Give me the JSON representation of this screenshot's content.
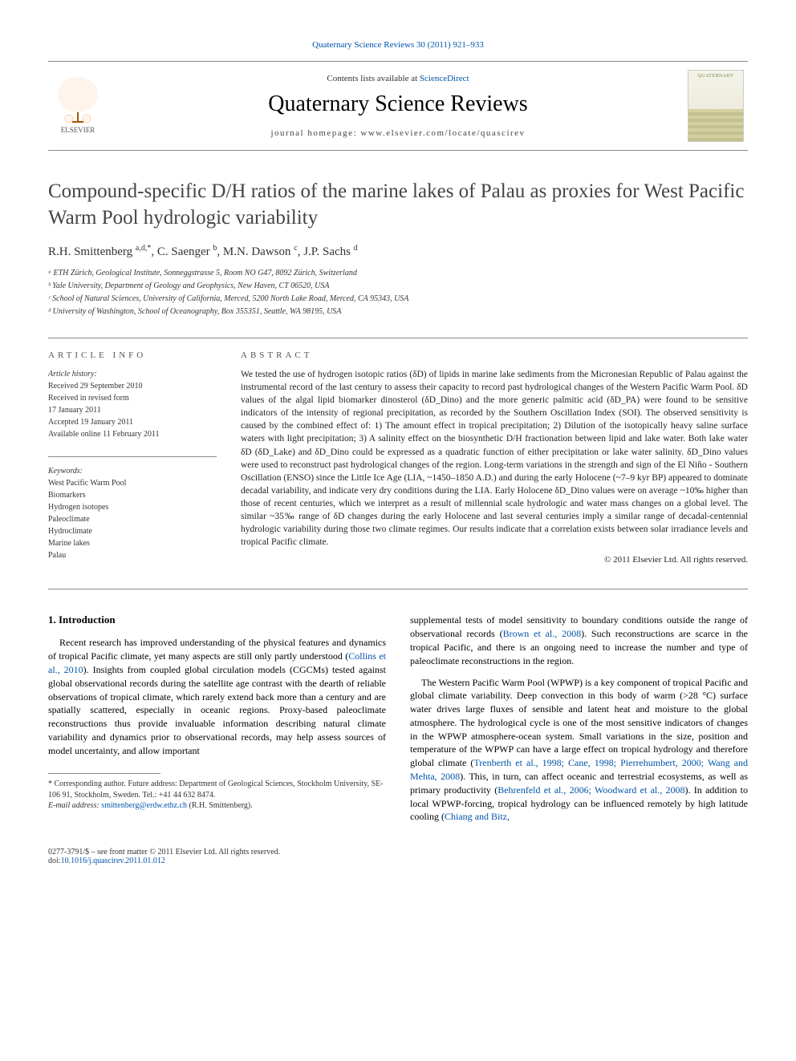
{
  "journal_ref": {
    "text": "Quaternary Science Reviews 30 (2011) 921–933",
    "link_text": "Quaternary Science Reviews 30 (2011) 921–933"
  },
  "masthead": {
    "contents_prefix": "Contents lists available at ",
    "contents_link": "ScienceDirect",
    "journal_name": "Quaternary Science Reviews",
    "homepage_prefix": "journal homepage: ",
    "homepage_url": "www.elsevier.com/locate/quascirev",
    "cover_label": "QUATERNARY"
  },
  "title": "Compound-specific D/H ratios of the marine lakes of Palau as proxies for West Pacific Warm Pool hydrologic variability",
  "authors_html": "R.H. Smittenberg <sup>a,d,*</sup>, C. Saenger <sup>b</sup>, M.N. Dawson <sup>c</sup>, J.P. Sachs <sup>d</sup>",
  "affiliations": [
    "ᵃ ETH Zürich, Geological Institute, Sonneggstrasse 5, Room NO G47, 8092 Zürich, Switzerland",
    "ᵇ Yale University, Department of Geology and Geophysics, New Haven, CT 06520, USA",
    "ᶜ School of Natural Sciences, University of California, Merced, 5200 North Lake Road, Merced, CA 95343, USA",
    "ᵈ University of Washington, School of Oceanography, Box 355351, Seattle, WA 98195, USA"
  ],
  "article_info": {
    "header": "ARTICLE INFO",
    "history_label": "Article history:",
    "history_lines": [
      "Received 29 September 2010",
      "Received in revised form",
      "17 January 2011",
      "Accepted 19 January 2011",
      "Available online 11 February 2011"
    ],
    "keywords_label": "Keywords:",
    "keywords": [
      "West Pacific Warm Pool",
      "Biomarkers",
      "Hydrogen isotopes",
      "Paleoclimate",
      "Hydroclimate",
      "Marine lakes",
      "Palau"
    ]
  },
  "abstract": {
    "header": "ABSTRACT",
    "text": "We tested the use of hydrogen isotopic ratios (δD) of lipids in marine lake sediments from the Micronesian Republic of Palau against the instrumental record of the last century to assess their capacity to record past hydrological changes of the Western Pacific Warm Pool. δD values of the algal lipid biomarker dinosterol (δD_Dino) and the more generic palmitic acid (δD_PA) were found to be sensitive indicators of the intensity of regional precipitation, as recorded by the Southern Oscillation Index (SOI). The observed sensitivity is caused by the combined effect of: 1) The amount effect in tropical precipitation; 2) Dilution of the isotopically heavy saline surface waters with light precipitation; 3) A salinity effect on the biosynthetic D/H fractionation between lipid and lake water. Both lake water δD (δD_Lake) and δD_Dino could be expressed as a quadratic function of either precipitation or lake water salinity. δD_Dino values were used to reconstruct past hydrological changes of the region. Long-term variations in the strength and sign of the El Niño - Southern Oscillation (ENSO) since the Little Ice Age (LIA, ~1450–1850 A.D.) and during the early Holocene (~7–9 kyr BP) appeared to dominate decadal variability, and indicate very dry conditions during the LIA. Early Holocene δD_Dino values were on average ~10‰ higher than those of recent centuries, which we interpret as a result of millennial scale hydrologic and water mass changes on a global level. The similar ~35‰ range of δD changes during the early Holocene and last several centuries imply a similar range of decadal-centennial hydrologic variability during those two climate regimes. Our results indicate that a correlation exists between solar irradiance levels and tropical Pacific climate.",
    "copyright": "© 2011 Elsevier Ltd. All rights reserved."
  },
  "body": {
    "section_number": "1.",
    "section_title": "Introduction",
    "col1_p1_pre": "Recent research has improved understanding of the physical features and dynamics of tropical Pacific climate, yet many aspects are still only partly understood (",
    "col1_p1_cite1": "Collins et al., 2010",
    "col1_p1_post": "). Insights from coupled global circulation models (CGCMs) tested against global observational records during the satellite age contrast with the dearth of reliable observations of tropical climate, which rarely extend back more than a century and are spatially scattered, especially in oceanic regions. Proxy-based paleoclimate reconstructions thus provide invaluable information describing natural climate variability and dynamics prior to observational records, may help assess sources of model uncertainty, and allow important",
    "col2_p1_pre": "supplemental tests of model sensitivity to boundary conditions outside the range of observational records (",
    "col2_p1_cite1": "Brown et al., 2008",
    "col2_p1_post": "). Such reconstructions are scarce in the tropical Pacific, and there is an ongoing need to increase the number and type of paleoclimate reconstructions in the region.",
    "col2_p2_pre": "The Western Pacific Warm Pool (WPWP) is a key component of tropical Pacific and global climate variability. Deep convection in this body of warm (>28 °C) surface water drives large fluxes of sensible and latent heat and moisture to the global atmosphere. The hydrological cycle is one of the most sensitive indicators of changes in the WPWP atmosphere-ocean system. Small variations in the size, position and temperature of the WPWP can have a large effect on tropical hydrology and therefore global climate (",
    "col2_p2_cite1": "Trenberth et al., 1998; Cane, 1998; Pierrehumbert, 2000; Wang and Mehta, 2008",
    "col2_p2_mid1": "). This, in turn, can affect oceanic and terrestrial ecosystems, as well as primary productivity (",
    "col2_p2_cite2": "Behrenfeld et al., 2006; Woodward et al., 2008",
    "col2_p2_mid2": "). In addition to local WPWP-forcing, tropical hydrology can be influenced remotely by high latitude cooling (",
    "col2_p2_cite3": "Chiang and Bitz,"
  },
  "footnote": {
    "corresponding": "* Corresponding author. Future address: Department of Geological Sciences, Stockholm University, SE-106 91, Stockholm, Sweden. Tel.: +41 44 632 8474.",
    "email_label": "E-mail address: ",
    "email": "smittenberg@erdw.ethz.ch",
    "email_suffix": " (R.H. Smittenberg)."
  },
  "footer": {
    "issn_line": "0277-3791/$ – see front matter © 2011 Elsevier Ltd. All rights reserved.",
    "doi_prefix": "doi:",
    "doi": "10.1016/j.quascirev.2011.01.012"
  },
  "colors": {
    "link": "#0055aa",
    "text": "#000000",
    "heading_gray": "#444444",
    "elsevier_orange": "#ff6a00"
  },
  "typography": {
    "body_fontsize_pt": 9,
    "abstract_fontsize_pt": 8.5,
    "title_fontsize_pt": 18,
    "journal_name_fontsize_pt": 21
  }
}
